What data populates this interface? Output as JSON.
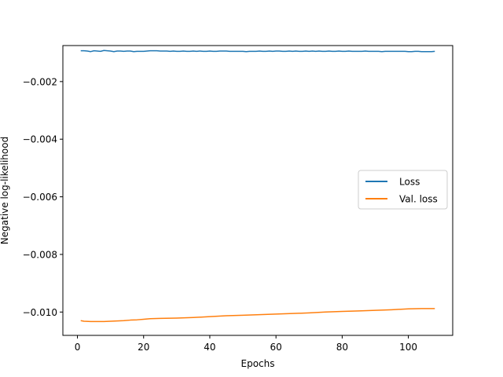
{
  "chart_data": {
    "type": "line",
    "title": "",
    "xlabel": "Epochs",
    "ylabel": "Negative log-likelihood",
    "xlim": [
      -4.4,
      113.4
    ],
    "ylim": [
      -0.01081,
      -0.00075
    ],
    "x_ticks": [
      0,
      20,
      40,
      60,
      80,
      100
    ],
    "x_tick_labels": [
      "0",
      "20",
      "40",
      "60",
      "80",
      "100"
    ],
    "y_ticks": [
      -0.002,
      -0.004,
      -0.006,
      -0.008,
      -0.01
    ],
    "y_tick_labels": [
      "−0.002",
      "−0.004",
      "−0.006",
      "−0.008",
      "−0.010"
    ],
    "grid": false,
    "legend_position": "center-right",
    "series": [
      {
        "name": "Loss",
        "color": "#1f77b4",
        "x": [
          1,
          2,
          3,
          4,
          5,
          6,
          7,
          8,
          9,
          10,
          11,
          12,
          13,
          14,
          15,
          16,
          17,
          18,
          19,
          20,
          21,
          22,
          23,
          24,
          25,
          26,
          27,
          28,
          29,
          30,
          31,
          32,
          33,
          34,
          35,
          36,
          37,
          38,
          39,
          40,
          41,
          42,
          43,
          44,
          45,
          46,
          47,
          48,
          49,
          50,
          51,
          52,
          53,
          54,
          55,
          56,
          57,
          58,
          59,
          60,
          61,
          62,
          63,
          64,
          65,
          66,
          67,
          68,
          69,
          70,
          71,
          72,
          73,
          74,
          75,
          76,
          77,
          78,
          79,
          80,
          81,
          82,
          83,
          84,
          85,
          86,
          87,
          88,
          89,
          90,
          91,
          92,
          93,
          94,
          95,
          96,
          97,
          98,
          99,
          100,
          101,
          102,
          103,
          104,
          105,
          106,
          107,
          108
        ],
        "values": [
          -0.00093,
          -0.00093,
          -0.00094,
          -0.00096,
          -0.00093,
          -0.00094,
          -0.00095,
          -0.00092,
          -0.00093,
          -0.00094,
          -0.00096,
          -0.00094,
          -0.00094,
          -0.00095,
          -0.00094,
          -0.00094,
          -0.00096,
          -0.00095,
          -0.00095,
          -0.00095,
          -0.00094,
          -0.00093,
          -0.00093,
          -0.00093,
          -0.00094,
          -0.00094,
          -0.00094,
          -0.00095,
          -0.00094,
          -0.00095,
          -0.00095,
          -0.00094,
          -0.00095,
          -0.00095,
          -0.00094,
          -0.00095,
          -0.00094,
          -0.00095,
          -0.00095,
          -0.00094,
          -0.00095,
          -0.00095,
          -0.00094,
          -0.00094,
          -0.00094,
          -0.00095,
          -0.00095,
          -0.00095,
          -0.00095,
          -0.00095,
          -0.00096,
          -0.00095,
          -0.00095,
          -0.00095,
          -0.00094,
          -0.00095,
          -0.00095,
          -0.00094,
          -0.00095,
          -0.00094,
          -0.00094,
          -0.00095,
          -0.00095,
          -0.00094,
          -0.00095,
          -0.00094,
          -0.00095,
          -0.00095,
          -0.00094,
          -0.00095,
          -0.00094,
          -0.00095,
          -0.00094,
          -0.00095,
          -0.00095,
          -0.00094,
          -0.00095,
          -0.00095,
          -0.00094,
          -0.00095,
          -0.00095,
          -0.00094,
          -0.00095,
          -0.00095,
          -0.00095,
          -0.00095,
          -0.00094,
          -0.00095,
          -0.00095,
          -0.00095,
          -0.00095,
          -0.00096,
          -0.00095,
          -0.00095,
          -0.00095,
          -0.00095,
          -0.00095,
          -0.00095,
          -0.00095,
          -0.00096,
          -0.00096,
          -0.00095,
          -0.00095,
          -0.00096,
          -0.00096,
          -0.00096,
          -0.00096,
          -0.00095
        ]
      },
      {
        "name": "Val. loss",
        "color": "#ff7f0e",
        "x": [
          1,
          2,
          4,
          6,
          8,
          10,
          12,
          14,
          16,
          18,
          20,
          22,
          25,
          30,
          35,
          40,
          45,
          50,
          55,
          60,
          65,
          70,
          75,
          80,
          85,
          90,
          95,
          100,
          104,
          108
        ],
        "values": [
          -0.0103,
          -0.01032,
          -0.01033,
          -0.01033,
          -0.01033,
          -0.01032,
          -0.01031,
          -0.0103,
          -0.01028,
          -0.01027,
          -0.01025,
          -0.01023,
          -0.01022,
          -0.01021,
          -0.01019,
          -0.01016,
          -0.01013,
          -0.01011,
          -0.01009,
          -0.01007,
          -0.01005,
          -0.01003,
          -0.01,
          -0.00998,
          -0.00996,
          -0.00994,
          -0.00992,
          -0.00989,
          -0.00988,
          -0.00988
        ]
      }
    ]
  }
}
